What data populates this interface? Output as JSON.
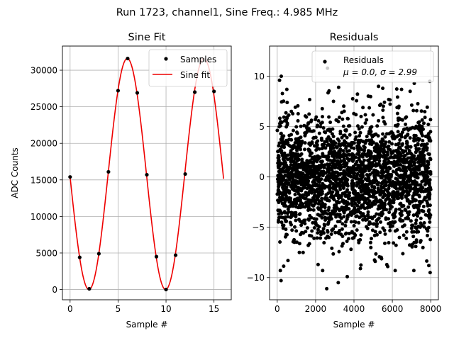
{
  "suptitle": "Run 1723, channel1, Sine Freq.: 4.985 MHz",
  "chart_data": [
    {
      "type": "line",
      "title": "Sine Fit",
      "xlabel": "Sample #",
      "ylabel": "ADC Counts",
      "xlim": [
        -0.8,
        16.8
      ],
      "ylim": [
        -1400,
        33300
      ],
      "xticks": [
        0,
        5,
        10,
        15
      ],
      "xtick_labels": [
        "0",
        "5",
        "10",
        "15"
      ],
      "yticks": [
        0,
        5000,
        10000,
        15000,
        20000,
        25000,
        30000
      ],
      "ytick_labels": [
        "0",
        "5000",
        "10000",
        "15000",
        "20000",
        "25000",
        "30000"
      ],
      "grid": true,
      "legend": {
        "position": "top-right",
        "entries": [
          {
            "label": "Samples",
            "marker": "dot",
            "color": "#000000"
          },
          {
            "label": "Sine fit",
            "marker": "line",
            "color": "#ee0000"
          }
        ]
      },
      "series": [
        {
          "name": "Samples",
          "style": "points",
          "color": "#000000",
          "x": [
            0,
            1,
            2,
            3,
            4,
            5,
            6,
            7,
            8,
            9,
            10,
            11,
            12,
            13,
            14,
            15
          ],
          "y": [
            15400,
            4400,
            100,
            4900,
            16100,
            27200,
            31600,
            26900,
            15700,
            4500,
            0,
            4700,
            15800,
            27000,
            31400,
            27100
          ]
        },
        {
          "name": "Sine fit",
          "style": "line",
          "color": "#ee0000",
          "fit": {
            "amplitude": 15800,
            "offset": 15800,
            "period": 7.99,
            "phase_sample": 0,
            "phase_value_at_0": 15400,
            "x_range": [
              0,
              16
            ]
          }
        }
      ]
    },
    {
      "type": "scatter",
      "title": "Residuals",
      "xlabel": "Sample #",
      "ylabel": "",
      "xlim": [
        -400,
        8400
      ],
      "ylim": [
        -12.2,
        13
      ],
      "xticks": [
        0,
        2000,
        4000,
        6000,
        8000
      ],
      "xtick_labels": [
        "0",
        "2000",
        "4000",
        "6000",
        "8000"
      ],
      "yticks": [
        -10,
        -5,
        0,
        5,
        10
      ],
      "ytick_labels": [
        "−10",
        "−5",
        "0",
        "5",
        "10"
      ],
      "grid": true,
      "legend": {
        "position": "top-right",
        "entries": [
          {
            "label": "Residuals",
            "marker": "dot",
            "color": "#000000"
          }
        ],
        "note": "μ = 0.0, σ = 2.99"
      },
      "residuals": {
        "n": 8000,
        "x_range": [
          0,
          8000
        ],
        "mean": 0.0,
        "sigma": 2.99,
        "color": "#000000",
        "outliers": [
          [
            120,
            9.6
          ],
          [
            210,
            10.0
          ],
          [
            200,
            -10.3
          ],
          [
            500,
            8.7
          ],
          [
            560,
            -8.3
          ],
          [
            2620,
            10.8
          ],
          [
            2580,
            -11.1
          ],
          [
            3180,
            -10.5
          ],
          [
            3650,
            -9.9
          ],
          [
            3200,
            8.9
          ],
          [
            5280,
            9.0
          ],
          [
            5500,
            8.8
          ],
          [
            5760,
            -8.9
          ],
          [
            6480,
            8.7
          ],
          [
            7950,
            9.5
          ],
          [
            7970,
            -9.5
          ],
          [
            7900,
            -8.8
          ],
          [
            2130,
            -8.7
          ]
        ]
      }
    }
  ]
}
